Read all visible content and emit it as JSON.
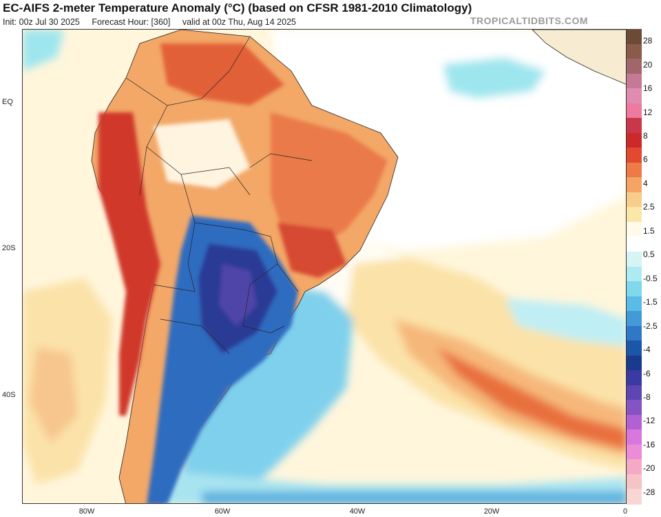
{
  "header": {
    "title": "EC-AIFS 2-meter Temperature Anomaly (°C) (based on CFSR 1981-2010 Climatology)",
    "init": "Init: 00z Jul 30 2025",
    "forecast_hour": "Forecast Hour: [360]",
    "valid": "valid at 00z Thu, Aug 14 2025",
    "brand": "TROPICALTIDBITS.COM"
  },
  "axes": {
    "lat_labels": [
      "EQ",
      "20S",
      "40S"
    ],
    "lon_labels": [
      "80W",
      "60W",
      "40W",
      "20W",
      "0"
    ]
  },
  "colorbar": {
    "labels": [
      "28",
      "20",
      "16",
      "12",
      "8",
      "6",
      "4",
      "2.5",
      "1.5",
      "0.5",
      "-0.5",
      "-1.5",
      "-2.5",
      "-4",
      "-6",
      "-8",
      "-12",
      "-16",
      "-20",
      "-28"
    ],
    "colors": [
      "#6b4a36",
      "#8a5a4a",
      "#a0666a",
      "#c47a94",
      "#e08cb0",
      "#ee7aa0",
      "#c8384a",
      "#cc2a2a",
      "#e24a30",
      "#ee7a46",
      "#f6a464",
      "#f8cc8a",
      "#fbe7aa",
      "#fffbe8",
      "#ffffff",
      "#d6f4f6",
      "#aeeaf2",
      "#7fd8ec",
      "#5abce6",
      "#429ad8",
      "#2f78c6",
      "#1c56a8",
      "#1a3a8c",
      "#3a3aa2",
      "#5e46b2",
      "#8654c2",
      "#b062d2",
      "#d878de",
      "#ea8cd8",
      "#f4aac4",
      "#f6c4c4",
      "#f8d6d2"
    ]
  }
}
